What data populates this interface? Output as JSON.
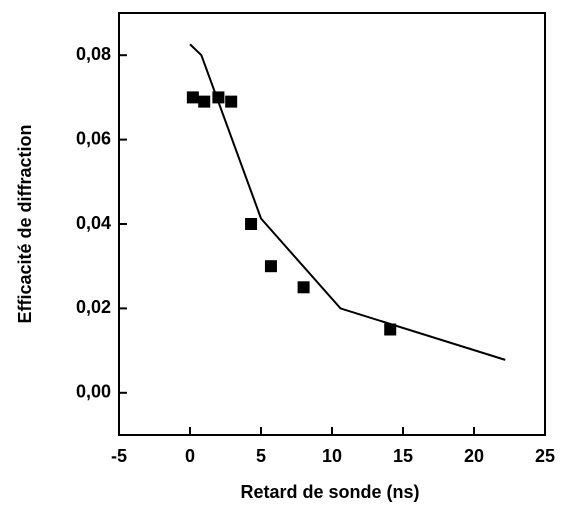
{
  "chart_data": {
    "type": "scatter",
    "x_label": "Retard de sonde (ns)",
    "y_label": "Efficacité de diffraction",
    "xlim": [
      -5,
      25
    ],
    "xticks": [
      -5,
      0,
      5,
      10,
      15,
      20,
      25
    ],
    "ylim": [
      -0.01,
      0.09
    ],
    "yticks": [
      {
        "value": 0,
        "label": "0,00"
      },
      {
        "value": 0.02,
        "label": "0,02"
      },
      {
        "value": 0.04,
        "label": "0,04"
      },
      {
        "value": 0.06,
        "label": "0,06"
      },
      {
        "value": 0.08,
        "label": "0,08"
      }
    ],
    "series": [
      {
        "mode": "markers",
        "marker": "square",
        "color": "#000000",
        "x": [
          0.2,
          1.0,
          2.0,
          2.9,
          4.3,
          5.7,
          8.0,
          14.1
        ],
        "values": [
          0.07,
          0.069,
          0.07,
          0.069,
          0.04,
          0.03,
          0.025,
          0.015
        ]
      },
      {
        "mode": "lines",
        "color": "#000000",
        "x": [
          0,
          0.8,
          5.0,
          10.6,
          22.2
        ],
        "values": [
          0.0826,
          0.08,
          0.0413,
          0.02,
          0.0078
        ]
      }
    ]
  }
}
